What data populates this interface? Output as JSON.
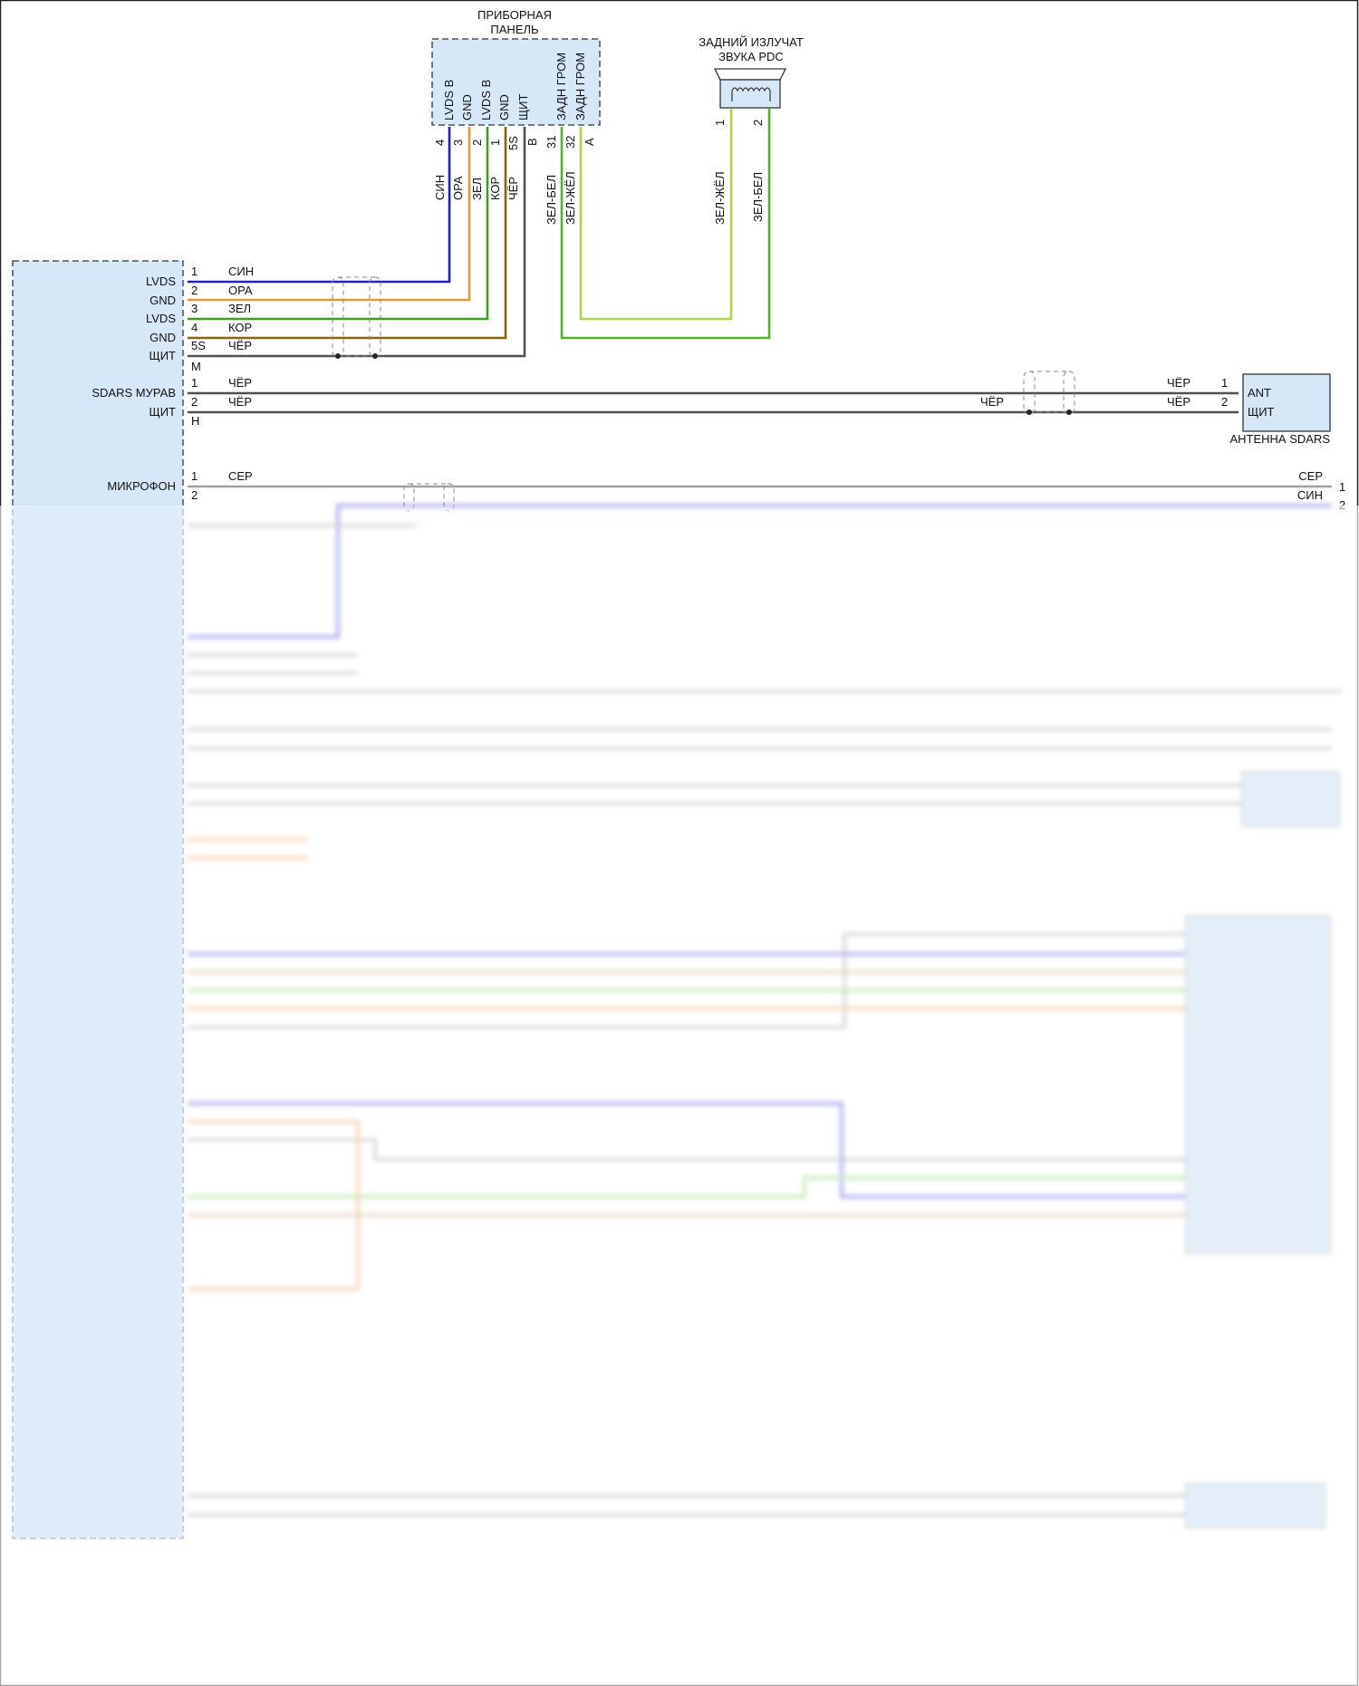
{
  "wire_colors": {
    "blue": "#1c22c8",
    "orange": "#e09a38",
    "green": "#3e9e1e",
    "brown": "#86650e",
    "black": "#505050",
    "green_white": "#55b02a",
    "green_yellow": "#a8d64a",
    "grey": "#a0a0a0"
  },
  "instrument_panel": {
    "title_line1": "ПРИБОРНАЯ",
    "title_line2": "ПАНЕЛЬ",
    "pin_names": [
      "LVDS B",
      "GND",
      "LVDS B",
      "GND",
      "ЩИТ",
      "ЗАДН ГРОМ",
      "ЗАДН ГРОМ"
    ],
    "pin_numbers": [
      "4",
      "3",
      "2",
      "1",
      "5S",
      "B",
      "31",
      "32",
      "A"
    ],
    "wires": [
      "СИН",
      "ОРА",
      "ЗЕЛ",
      "КОР",
      "ЧЁР",
      "ЗЕЛ-БЕЛ",
      "ЗЕЛ-ЖЁЛ"
    ]
  },
  "pdc_speaker": {
    "title_line1": "ЗАДНИЙ ИЗЛУЧАТ",
    "title_line2": "ЗВУКА PDC",
    "pin_numbers": [
      "1",
      "2"
    ],
    "wires": [
      "ЗЕЛ-ЖЁЛ",
      "ЗЕЛ-БЕЛ"
    ],
    "icon": "speaker-icon"
  },
  "main_module": {
    "lvds_group": {
      "rows": [
        {
          "label": "LVDS",
          "pin": "1",
          "wire": "СИН"
        },
        {
          "label": "GND",
          "pin": "2",
          "wire": "ОРА"
        },
        {
          "label": "LVDS",
          "pin": "3",
          "wire": "ЗЕЛ"
        },
        {
          "label": "GND",
          "pin": "4",
          "wire": "КОР"
        },
        {
          "label": "ЩИТ",
          "pin": "5S",
          "wire": "ЧЁР"
        }
      ],
      "connector": "M"
    },
    "sdars_group": {
      "rows": [
        {
          "label": "SDARS МУРАВ",
          "pin": "1",
          "wire": "ЧЁР"
        },
        {
          "label": "ЩИТ",
          "pin": "2",
          "wire": "ЧЁР"
        }
      ],
      "connector": "H",
      "mid_wire": "ЧЁР",
      "right_wires": [
        "ЧЁР",
        "ЧЁР"
      ],
      "right_pins": [
        "1",
        "2"
      ]
    },
    "mic_group": {
      "label": "МИКРОФОН",
      "pins": [
        "1",
        "2"
      ],
      "wire": "СЕР",
      "right_wires": [
        "СЕР",
        "СИН"
      ],
      "right_pins": [
        "1",
        "2"
      ]
    }
  },
  "sdars_antenna": {
    "pins": [
      "ANT",
      "ЩИТ"
    ],
    "title": "АНТЕННА SDARS"
  }
}
